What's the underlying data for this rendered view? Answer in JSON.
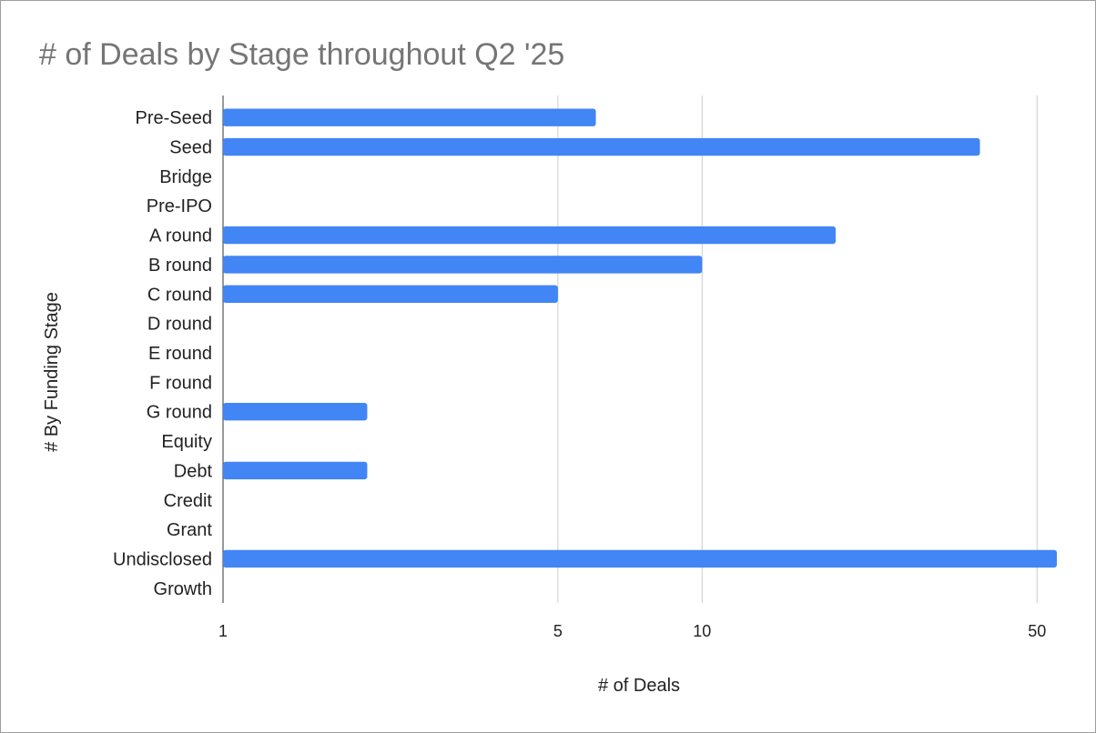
{
  "chart_data": {
    "type": "bar",
    "orientation": "horizontal",
    "title": "# of Deals by Stage throughout Q2 '25",
    "xlabel": "# of Deals",
    "ylabel": "# By Funding Stage",
    "x_scale": "log",
    "xlim": [
      1,
      55
    ],
    "x_ticks": [
      1,
      5,
      10,
      50
    ],
    "x_tick_labels": [
      "1",
      "5",
      "10",
      "50"
    ],
    "grid": true,
    "legend": "none",
    "bar_color": "#4285f4",
    "categories": [
      "Pre-Seed",
      "Seed",
      "Bridge",
      "Pre-IPO",
      "A round",
      "B round",
      "C round",
      "D round",
      "E round",
      "F round",
      "G round",
      "Equity",
      "Debt",
      "Credit",
      "Grant",
      "Undisclosed",
      "Growth"
    ],
    "values": [
      6,
      38,
      1,
      1,
      19,
      10,
      5,
      1,
      1,
      1,
      2,
      1,
      2,
      1,
      1,
      55,
      1
    ]
  }
}
